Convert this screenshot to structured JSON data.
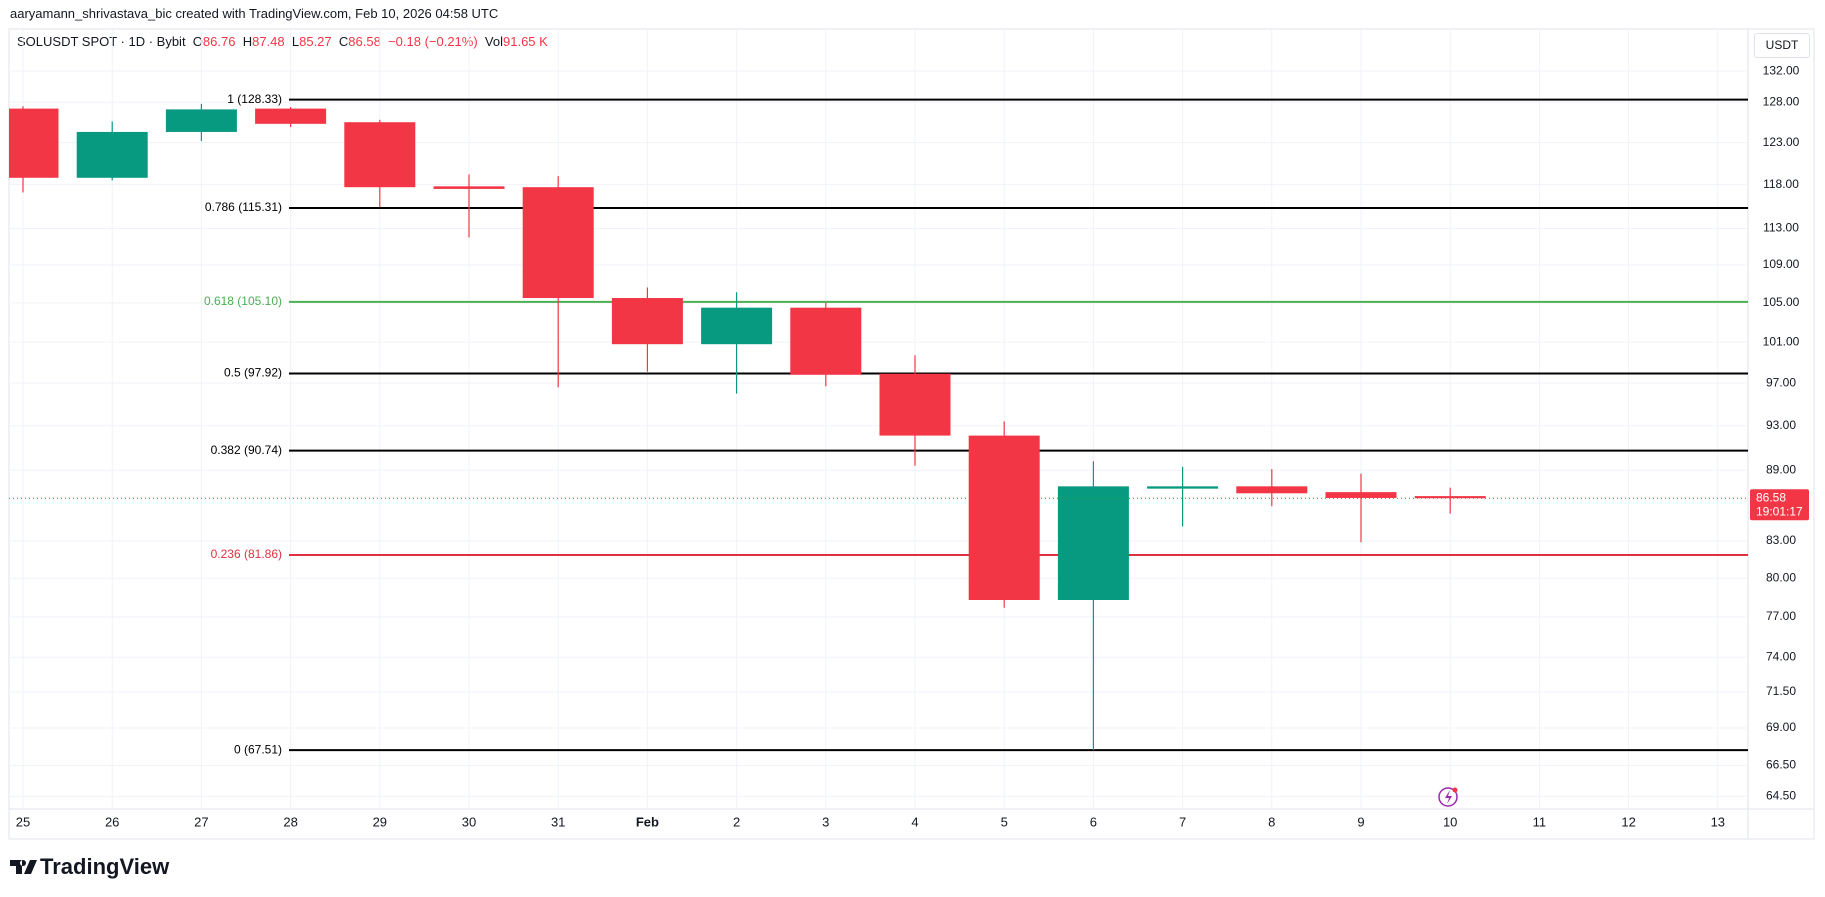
{
  "header": {
    "credit": "aaryamann_shrivastava_bic created with TradingView.com, Feb 10, 2026 04:58 UTC",
    "symbol": "SOLUSDT SPOT · 1D · Bybit",
    "o_label": "O",
    "o": "86.76",
    "h_label": "H",
    "h": "87.48",
    "l_label": "L",
    "l": "85.27",
    "c_label": "C",
    "c": "86.58",
    "change": "−0.18 (−0.21%)",
    "vol_label": "Vol",
    "vol": "91.65 K",
    "currency": "USDT",
    "brand": "TradingView"
  },
  "chart_data": {
    "type": "candlestick",
    "categories": [
      "25",
      "26",
      "27",
      "28",
      "29",
      "30",
      "31",
      "Feb",
      "2",
      "3",
      "4",
      "5",
      "6",
      "7",
      "8",
      "9",
      "10",
      "11",
      "12",
      "13"
    ],
    "open": [
      127.2,
      118.8,
      124.3,
      127.2,
      125.5,
      117.8,
      117.7,
      105.5,
      100.8,
      104.5,
      97.9,
      92.1,
      78.3,
      87.4,
      87.6,
      87.1,
      86.76,
      null,
      null,
      null
    ],
    "high": [
      127.5,
      125.6,
      127.8,
      127.4,
      125.8,
      119.2,
      119.0,
      106.6,
      106.1,
      105.0,
      99.7,
      93.4,
      89.8,
      89.3,
      89.1,
      88.7,
      87.48,
      null,
      null,
      null
    ],
    "low": [
      117.1,
      118.5,
      123.2,
      124.9,
      115.4,
      112.0,
      96.6,
      98.1,
      96.0,
      96.7,
      89.4,
      77.7,
      67.51,
      84.2,
      85.9,
      82.9,
      85.27,
      null,
      null,
      null
    ],
    "close": [
      118.8,
      124.3,
      127.1,
      125.3,
      117.7,
      117.5,
      105.5,
      100.8,
      104.5,
      97.8,
      92.1,
      78.3,
      87.6,
      87.6,
      87.0,
      86.6,
      86.58,
      null,
      null,
      null
    ],
    "up_color": "#089981",
    "down_color": "#f23645",
    "log_scale": true,
    "grid": true,
    "ylim": [
      63.7,
      137.6
    ],
    "yticks": [
      {
        "value": 132,
        "label": "132.00"
      },
      {
        "value": 128,
        "label": "128.00"
      },
      {
        "value": 123,
        "label": "123.00"
      },
      {
        "value": 118,
        "label": "118.00"
      },
      {
        "value": 113,
        "label": "113.00"
      },
      {
        "value": 109,
        "label": "109.00"
      },
      {
        "value": 105,
        "label": "105.00"
      },
      {
        "value": 101,
        "label": "101.00"
      },
      {
        "value": 97,
        "label": "97.00"
      },
      {
        "value": 93,
        "label": "93.00"
      },
      {
        "value": 89,
        "label": "89.00"
      },
      {
        "value": 83,
        "label": "83.00"
      },
      {
        "value": 80,
        "label": "80.00"
      },
      {
        "value": 77,
        "label": "77.00"
      },
      {
        "value": 74,
        "label": "74.00"
      },
      {
        "value": 71.5,
        "label": "71.50"
      },
      {
        "value": 69,
        "label": "69.00"
      },
      {
        "value": 66.5,
        "label": "66.50"
      },
      {
        "value": 64.5,
        "label": "64.50"
      }
    ],
    "fib_levels": [
      {
        "value": 128.33,
        "label": "1 (128.33)",
        "color": "#000000"
      },
      {
        "value": 115.31,
        "label": "0.786 (115.31)",
        "color": "#000000"
      },
      {
        "value": 105.1,
        "label": "0.618 (105.10)",
        "color": "#4caf50"
      },
      {
        "value": 97.92,
        "label": "0.5 (97.92)",
        "color": "#000000"
      },
      {
        "value": 90.74,
        "label": "0.382 (90.74)",
        "color": "#000000"
      },
      {
        "value": 81.86,
        "label": "0.236 (81.86)",
        "color": "#e03040"
      },
      {
        "value": 67.51,
        "label": "0 (67.51)",
        "color": "#000000"
      }
    ],
    "last_price": {
      "value": 86.58,
      "countdown": "19:01:17",
      "color": "#f23645"
    }
  }
}
